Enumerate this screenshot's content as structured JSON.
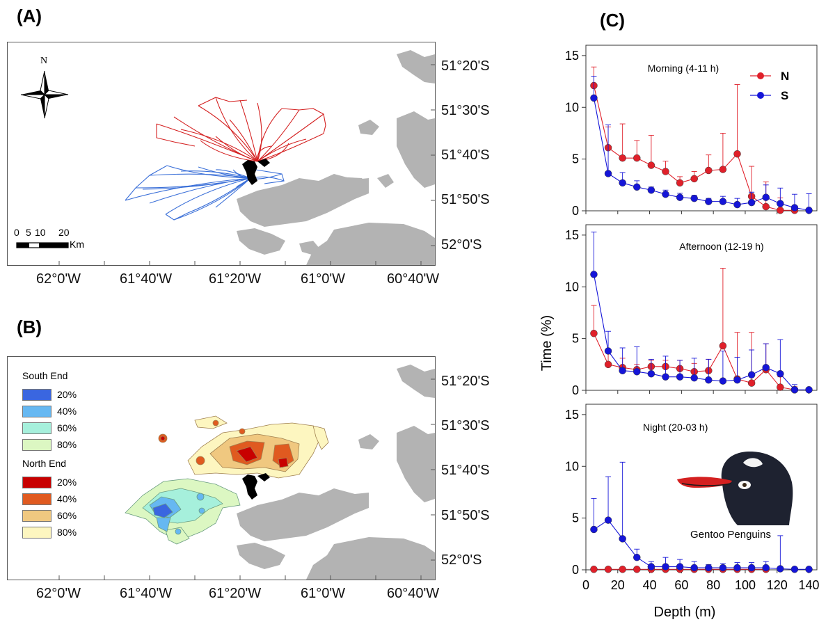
{
  "panels": {
    "a_label": "(A)",
    "b_label": "(B)",
    "c_label": "(C)"
  },
  "map": {
    "lat_labels": [
      "51°20'S",
      "51°30'S",
      "51°40'S",
      "51°50'S",
      "52°0'S"
    ],
    "lon_labels": [
      "62°0'W",
      "61°40'W",
      "61°20'W",
      "61°0'W",
      "60°40'W"
    ],
    "north_label": "N",
    "scale_numbers": [
      "0",
      "5",
      "10",
      "20"
    ],
    "scale_unit": "Km",
    "colors": {
      "north_track": "#d42020",
      "south_track": "#3a6fd8",
      "land": "#b3b3b3",
      "colony": "#000000"
    }
  },
  "kde_legend": {
    "south_title": "South End",
    "south_items": [
      {
        "label": "20%",
        "color": "#3a66e0"
      },
      {
        "label": "40%",
        "color": "#66b8f2"
      },
      {
        "label": "60%",
        "color": "#a6f0dc"
      },
      {
        "label": "80%",
        "color": "#dcf7c2"
      }
    ],
    "north_title": "North End",
    "north_items": [
      {
        "label": "20%",
        "color": "#c80000"
      },
      {
        "label": "40%",
        "color": "#e05a20"
      },
      {
        "label": "60%",
        "color": "#f0c880"
      },
      {
        "label": "80%",
        "color": "#fdf6c0"
      }
    ]
  },
  "chart_data": {
    "type": "line",
    "xlabel": "Depth (m)",
    "ylabel": "Time (%)",
    "xlim": [
      0,
      145
    ],
    "ylim": [
      0,
      16
    ],
    "xticks": [
      0,
      20,
      40,
      60,
      80,
      100,
      120,
      140
    ],
    "yticks": [
      0,
      5,
      10,
      15
    ],
    "legend": {
      "placement": "top-right",
      "entries": [
        "N",
        "S"
      ]
    },
    "colors": {
      "N": "#e0202a",
      "S": "#1515d8"
    },
    "x": [
      5,
      14,
      23,
      32,
      41,
      50,
      59,
      68,
      77,
      86,
      95,
      104,
      113,
      122,
      131,
      140
    ],
    "subplots": [
      {
        "title": "Morning (4-11 h)",
        "series": [
          {
            "name": "N",
            "values": [
              12.1,
              6.1,
              5.1,
              5.1,
              4.4,
              3.8,
              2.7,
              3.1,
              3.9,
              4.0,
              5.5,
              1.4,
              0.4,
              0.05,
              0.05,
              null
            ],
            "err": [
              1.8,
              2.0,
              3.3,
              1.7,
              2.9,
              1.0,
              0.6,
              0.7,
              1.5,
              3.5,
              6.7,
              2.9,
              2.4,
              1.2,
              0.3,
              null
            ]
          },
          {
            "name": "S",
            "values": [
              10.9,
              3.6,
              2.7,
              2.3,
              2.0,
              1.6,
              1.3,
              1.2,
              0.9,
              0.9,
              0.6,
              0.8,
              1.3,
              0.7,
              0.3,
              0.05
            ],
            "err": [
              2.1,
              4.7,
              1.0,
              0.6,
              0.3,
              0.4,
              0.4,
              0.3,
              0.3,
              0.5,
              0.6,
              1.0,
              1.2,
              1.5,
              1.3,
              1.6
            ]
          }
        ]
      },
      {
        "title": "Afternoon (12-19 h)",
        "series": [
          {
            "name": "N",
            "values": [
              5.5,
              2.5,
              2.2,
              2.0,
              2.3,
              2.3,
              2.1,
              1.8,
              1.9,
              4.3,
              1.1,
              0.7,
              2.0,
              0.3,
              0.05,
              null
            ],
            "err": [
              2.7,
              1.3,
              0.9,
              0.5,
              0.6,
              0.6,
              0.8,
              0.8,
              1.1,
              7.5,
              4.5,
              4.9,
              2.5,
              1.0,
              0.3,
              null
            ]
          },
          {
            "name": "S",
            "values": [
              11.2,
              3.8,
              1.9,
              1.8,
              1.6,
              1.3,
              1.3,
              1.2,
              1.0,
              0.9,
              1.0,
              1.5,
              2.2,
              1.6,
              0.05,
              0.05
            ],
            "err": [
              4.1,
              1.9,
              2.2,
              2.4,
              1.4,
              2.0,
              1.6,
              1.9,
              2.0,
              2.9,
              2.2,
              2.4,
              2.3,
              3.3,
              0.5,
              0.2
            ]
          }
        ]
      },
      {
        "title": "Night (20-03 h)",
        "annotation": "Gentoo Penguins",
        "series": [
          {
            "name": "N",
            "values": [
              0.05,
              0.05,
              0.05,
              0.05,
              0.05,
              0.05,
              0.05,
              0.05,
              0.05,
              0.05,
              0.05,
              0.05,
              0.05,
              null,
              null,
              null
            ],
            "err": [
              0,
              0,
              0,
              0,
              0,
              0,
              0,
              0,
              0,
              0,
              0,
              0,
              0,
              null,
              null,
              null
            ]
          },
          {
            "name": "S",
            "values": [
              3.9,
              4.8,
              3.0,
              1.2,
              0.3,
              0.3,
              0.3,
              0.2,
              0.2,
              0.2,
              0.2,
              0.2,
              0.2,
              0.1,
              0.05,
              0.05
            ],
            "err": [
              3.0,
              4.2,
              7.4,
              0.8,
              0.5,
              0.9,
              0.7,
              0.6,
              0.3,
              0.4,
              0.5,
              0.5,
              0.6,
              3.2,
              0.2,
              0.1
            ]
          }
        ]
      }
    ]
  }
}
